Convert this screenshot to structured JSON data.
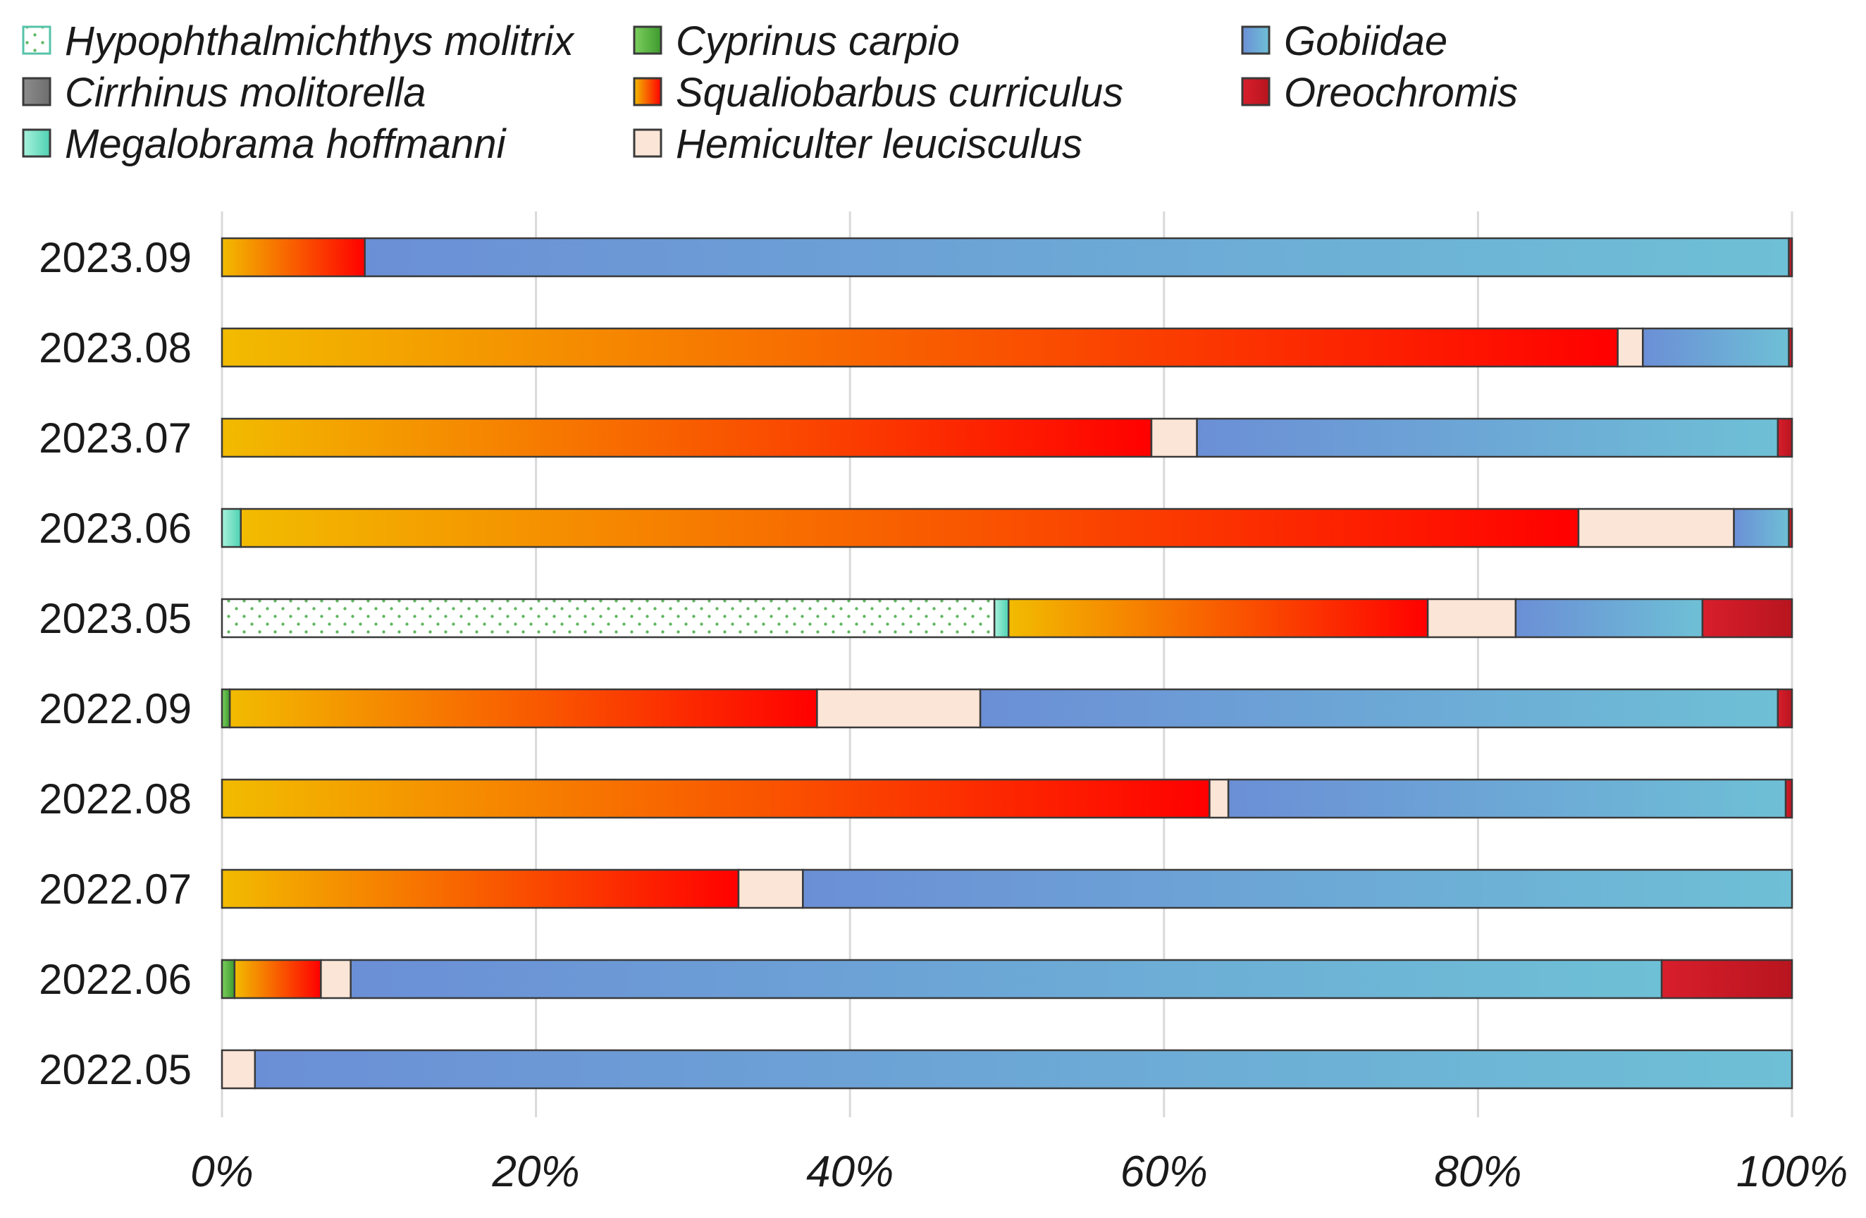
{
  "chart_data": {
    "type": "bar",
    "orientation": "horizontal",
    "stacked": true,
    "percent": true,
    "title": "",
    "xlabel": "",
    "ylabel": "",
    "xlim": [
      0,
      100
    ],
    "x_ticks": [
      "0%",
      "20%",
      "40%",
      "60%",
      "80%",
      "100%"
    ],
    "grid": true,
    "legend_position": "top",
    "categories": [
      "2023.09",
      "2023.08",
      "2023.07",
      "2023.06",
      "2023.05",
      "2022.09",
      "2022.08",
      "2022.07",
      "2022.06",
      "2022.05"
    ],
    "series": [
      {
        "name": "Hypophthalmichthys molitrix",
        "colors": [
          "#ffffff",
          "#62b662"
        ],
        "pattern": "dots",
        "values": [
          0,
          0,
          0,
          0,
          49.2,
          0,
          0,
          0,
          0,
          0
        ]
      },
      {
        "name": "Cirrhinus molitorella",
        "colors": [
          "#8c8c8c",
          "#6e6e6e"
        ],
        "values": [
          0,
          0,
          0,
          0,
          0,
          0,
          0,
          0,
          0,
          0
        ]
      },
      {
        "name": "Megalobrama hoffmanni",
        "colors": [
          "#a8f2dc",
          "#4fd1b2"
        ],
        "values": [
          0,
          0,
          0,
          1.2,
          0.9,
          0,
          0,
          0,
          0,
          0
        ]
      },
      {
        "name": "Cyprinus carpio",
        "colors": [
          "#7ccf5e",
          "#3e9a2e"
        ],
        "values": [
          0,
          0,
          0,
          0,
          0,
          0.5,
          0,
          0,
          0.8,
          0
        ]
      },
      {
        "name": "Squaliobarbus curriculus",
        "colors": [
          "#f2bb00",
          "#ff0000"
        ],
        "values": [
          9.1,
          88.9,
          59.2,
          85.2,
          26.7,
          37.4,
          62.9,
          32.9,
          5.5,
          0
        ]
      },
      {
        "name": "Hemiculter leucisculus",
        "colors": [
          "#fbe5d6",
          "#fbe5d6"
        ],
        "values": [
          0,
          1.6,
          2.9,
          9.9,
          5.6,
          10.4,
          1.2,
          4.1,
          1.9,
          2.1
        ]
      },
      {
        "name": "Gobiidae",
        "colors": [
          "#6b8fd6",
          "#6ec0d6"
        ],
        "values": [
          90.7,
          9.3,
          37.0,
          3.5,
          11.9,
          50.8,
          35.5,
          63.0,
          83.5,
          97.9
        ]
      },
      {
        "name": "Oreochromis",
        "colors": [
          "#d81e2c",
          "#b8151f"
        ],
        "values": [
          0.2,
          0.2,
          0.9,
          0.2,
          5.7,
          0.9,
          0.4,
          0,
          8.3,
          0
        ]
      }
    ]
  }
}
